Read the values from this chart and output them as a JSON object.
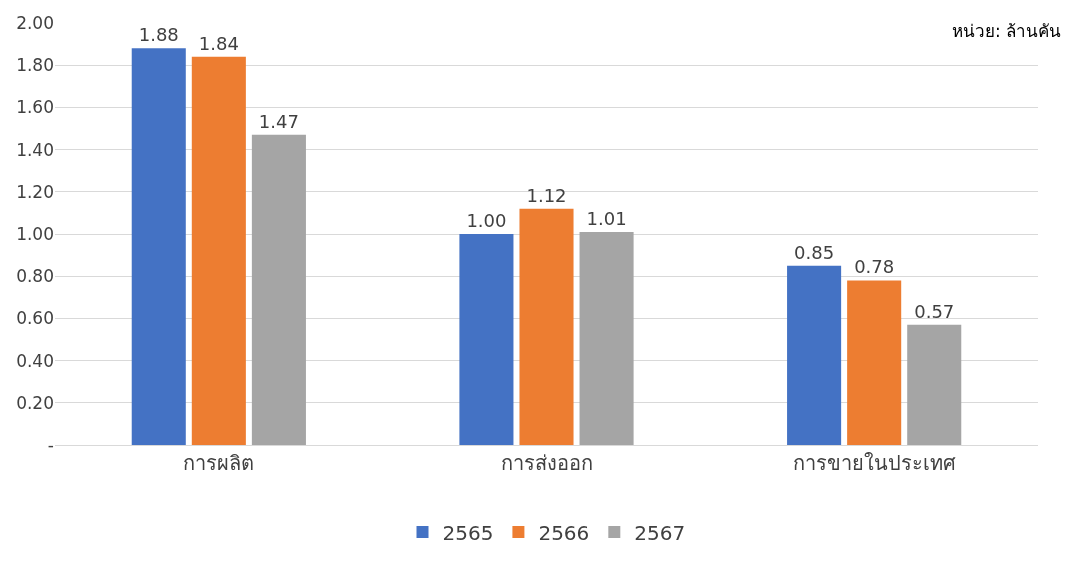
{
  "chart_data": {
    "type": "bar",
    "categories": [
      "การผลิต",
      "การส่งออก",
      "การขายในประเทศ"
    ],
    "series": [
      {
        "name": "2565",
        "color": "#4472c4",
        "values": [
          1.88,
          1.0,
          0.85
        ],
        "value_labels": [
          "1.88",
          "1.00",
          "0.85"
        ]
      },
      {
        "name": "2566",
        "color": "#ed7d31",
        "values": [
          1.84,
          1.12,
          0.78
        ],
        "value_labels": [
          "1.84",
          "1.12",
          "0.78"
        ]
      },
      {
        "name": "2567",
        "color": "#a5a5a5",
        "values": [
          1.47,
          1.01,
          0.57
        ],
        "value_labels": [
          "1.47",
          "1.01",
          "0.57"
        ]
      }
    ],
    "ylim": [
      0,
      2
    ],
    "yticks": [
      {
        "value": 0,
        "label": "-"
      },
      {
        "value": 0.2,
        "label": "0.20"
      },
      {
        "value": 0.4,
        "label": "0.40"
      },
      {
        "value": 0.6,
        "label": "0.60"
      },
      {
        "value": 0.8,
        "label": "0.80"
      },
      {
        "value": 1,
        "label": "1.00"
      },
      {
        "value": 1.2,
        "label": "1.20"
      },
      {
        "value": 1.4,
        "label": "1.40"
      },
      {
        "value": 1.6,
        "label": "1.60"
      },
      {
        "value": 1.8,
        "label": "1.80"
      },
      {
        "value": 2,
        "label": "2.00"
      }
    ],
    "grid": "y",
    "legend": "bottom",
    "annotations": [
      "หน่วย: ล้านคัน"
    ]
  }
}
